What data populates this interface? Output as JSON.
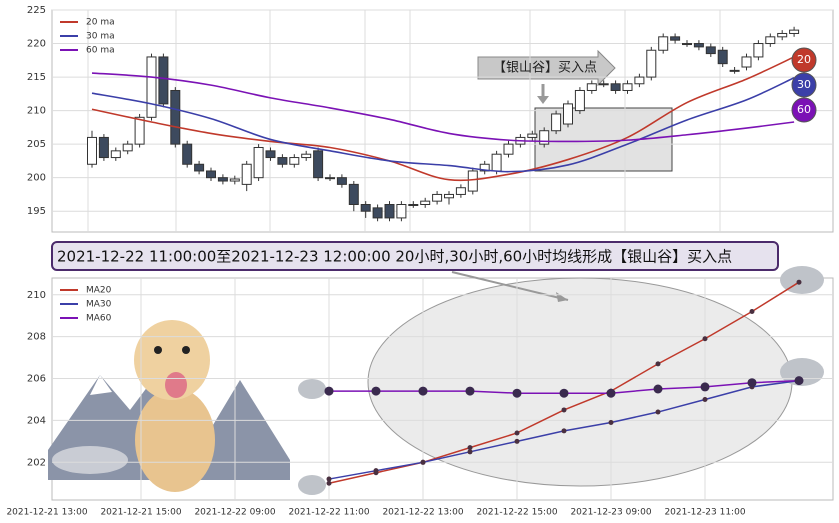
{
  "chart_data": [
    {
      "type": "candlestick",
      "candles": [
        {
          "open": 202,
          "close": 206,
          "high": 207,
          "low": 201.5
        },
        {
          "open": 206,
          "close": 203,
          "high": 206.5,
          "low": 202.5
        },
        {
          "open": 203,
          "close": 204,
          "high": 204.5,
          "low": 202.5
        },
        {
          "open": 204,
          "close": 205,
          "high": 205.5,
          "low": 203.5
        },
        {
          "open": 205,
          "close": 209,
          "high": 209.5,
          "low": 204.5
        },
        {
          "open": 209,
          "close": 218,
          "high": 218.5,
          "low": 208.5
        },
        {
          "open": 218,
          "close": 211,
          "high": 218.5,
          "low": 210.5
        },
        {
          "open": 213,
          "close": 205,
          "high": 213.5,
          "low": 204.5
        },
        {
          "open": 205,
          "close": 202,
          "high": 205.5,
          "low": 201.5
        },
        {
          "open": 202,
          "close": 201,
          "high": 202.5,
          "low": 200.5
        },
        {
          "open": 201,
          "close": 200,
          "high": 201.5,
          "low": 199.5
        },
        {
          "open": 200,
          "close": 199.5,
          "high": 200.5,
          "low": 199
        },
        {
          "open": 199.5,
          "close": 199.8,
          "high": 200.3,
          "low": 199
        },
        {
          "open": 199,
          "close": 202,
          "high": 202.5,
          "low": 198
        },
        {
          "open": 200,
          "close": 204.5,
          "high": 205,
          "low": 199.5
        },
        {
          "open": 204,
          "close": 203,
          "high": 204.5,
          "low": 202.5
        },
        {
          "open": 203,
          "close": 202,
          "high": 203.5,
          "low": 201.5
        },
        {
          "open": 202,
          "close": 203,
          "high": 203.5,
          "low": 201.5
        },
        {
          "open": 203,
          "close": 203.5,
          "high": 204,
          "low": 202.5
        },
        {
          "open": 204,
          "close": 200,
          "high": 204.5,
          "low": 199.5
        },
        {
          "open": 200,
          "close": 200,
          "high": 200.5,
          "low": 199.5
        },
        {
          "open": 200,
          "close": 199,
          "high": 200.5,
          "low": 198.5
        },
        {
          "open": 199,
          "close": 196,
          "high": 199.5,
          "low": 195
        },
        {
          "open": 196,
          "close": 195,
          "high": 196.5,
          "low": 194
        },
        {
          "open": 195.5,
          "close": 194,
          "high": 196,
          "low": 193.5
        },
        {
          "open": 196,
          "close": 194,
          "high": 196.5,
          "low": 193.5
        },
        {
          "open": 194,
          "close": 196,
          "high": 196.5,
          "low": 193.5
        },
        {
          "open": 196,
          "close": 196,
          "high": 196.5,
          "low": 195.5
        },
        {
          "open": 196,
          "close": 196.5,
          "high": 197,
          "low": 195.5
        },
        {
          "open": 196.5,
          "close": 197.5,
          "high": 198,
          "low": 196
        },
        {
          "open": 197,
          "close": 197.5,
          "high": 198,
          "low": 196
        },
        {
          "open": 197.5,
          "close": 198.5,
          "high": 199,
          "low": 197
        },
        {
          "open": 198,
          "close": 201,
          "high": 201.5,
          "low": 197.5
        },
        {
          "open": 201,
          "close": 202,
          "high": 202.5,
          "low": 200.5
        },
        {
          "open": 201,
          "close": 203.5,
          "high": 204,
          "low": 200.5
        },
        {
          "open": 203.5,
          "close": 205,
          "high": 205.5,
          "low": 203
        },
        {
          "open": 205,
          "close": 206,
          "high": 206.5,
          "low": 204.5
        },
        {
          "open": 206,
          "close": 206.5,
          "high": 207,
          "low": 205.5
        },
        {
          "open": 205,
          "close": 207,
          "high": 207.5,
          "low": 204.5
        },
        {
          "open": 207,
          "close": 209.5,
          "high": 210,
          "low": 206.5
        },
        {
          "open": 208,
          "close": 211,
          "high": 211.5,
          "low": 207.5
        },
        {
          "open": 210,
          "close": 213,
          "high": 213.5,
          "low": 209.5
        },
        {
          "open": 213,
          "close": 214,
          "high": 214.5,
          "low": 212.5
        },
        {
          "open": 214,
          "close": 214,
          "high": 214.5,
          "low": 213.5
        },
        {
          "open": 214,
          "close": 213,
          "high": 214.5,
          "low": 212.5
        },
        {
          "open": 213,
          "close": 214,
          "high": 214.5,
          "low": 212.5
        },
        {
          "open": 214,
          "close": 215,
          "high": 215.5,
          "low": 213.5
        },
        {
          "open": 215,
          "close": 219,
          "high": 219.5,
          "low": 214.5
        },
        {
          "open": 219,
          "close": 221,
          "high": 221.5,
          "low": 218.5
        },
        {
          "open": 221,
          "close": 220.5,
          "high": 221.5,
          "low": 220
        },
        {
          "open": 220,
          "close": 220,
          "high": 220.5,
          "low": 219.5
        },
        {
          "open": 220,
          "close": 219.5,
          "high": 220.5,
          "low": 219
        },
        {
          "open": 219.5,
          "close": 218.5,
          "high": 220,
          "low": 218
        },
        {
          "open": 219,
          "close": 217,
          "high": 219.5,
          "low": 216.5
        },
        {
          "open": 216,
          "close": 216,
          "high": 216.5,
          "low": 215.5
        },
        {
          "open": 216.5,
          "close": 218,
          "high": 218.5,
          "low": 216
        },
        {
          "open": 218,
          "close": 220,
          "high": 220.5,
          "low": 217.5
        },
        {
          "open": 220,
          "close": 221,
          "high": 221.5,
          "low": 219.5
        },
        {
          "open": 221,
          "close": 221.5,
          "high": 222,
          "low": 220.5
        },
        {
          "open": 221.5,
          "close": 222,
          "high": 222.5,
          "low": 221
        }
      ],
      "series": [
        {
          "name": "20 ma",
          "color": "#c0392b",
          "x": [
            0,
            5,
            10,
            15,
            20,
            25,
            30,
            35,
            40,
            45,
            50,
            55,
            59
          ],
          "values": [
            210.2,
            208.3,
            206.6,
            205.4,
            204.5,
            202.5,
            199.7,
            200.5,
            202.7,
            206.0,
            211.2,
            214.7,
            218.0
          ]
        },
        {
          "name": "30 ma",
          "color": "#3b3fa8",
          "x": [
            0,
            5,
            10,
            15,
            20,
            25,
            30,
            35,
            40,
            45,
            50,
            55,
            59
          ],
          "values": [
            212.6,
            211.0,
            208.8,
            205.7,
            204.0,
            202.5,
            201.8,
            200.9,
            201.9,
            205.0,
            208.6,
            211.6,
            214.9
          ]
        },
        {
          "name": "60 ma",
          "color": "#7b12b5",
          "x": [
            0,
            5,
            10,
            15,
            20,
            25,
            30,
            35,
            40,
            45,
            50,
            55,
            59
          ],
          "values": [
            215.6,
            215.0,
            213.8,
            211.9,
            210.4,
            208.7,
            206.6,
            205.6,
            205.4,
            205.6,
            206.4,
            207.4,
            208.3
          ]
        }
      ],
      "end_labels": [
        20,
        30,
        60
      ],
      "annotation": "【银山谷】买入点",
      "ylim": [
        191.9,
        225
      ],
      "yticks": [
        195,
        200,
        205,
        210,
        215,
        220,
        225
      ],
      "grid": true,
      "legend": "upper left"
    },
    {
      "type": "line",
      "title": "2021-12-22 11:00:00至2021-12-23 12:00:00 20小时,30小时,60小时均线形成【银山谷】买入点",
      "categories": [
        "2021-12-21 13:00",
        null,
        "2021-12-21 15:00",
        null,
        "2021-12-22 09:00",
        null,
        "2021-12-22 11:00",
        null,
        "2021-12-22 13:00",
        null,
        "2021-12-22 15:00",
        null,
        "2021-12-23 09:00",
        null,
        "2021-12-23 11:00",
        null,
        null
      ],
      "series": [
        {
          "name": "MA20",
          "color": "#c0392b",
          "values": [
            null,
            null,
            null,
            null,
            null,
            null,
            201.0,
            201.5,
            202.0,
            202.7,
            203.4,
            204.5,
            205.4,
            206.7,
            207.9,
            209.2,
            210.6
          ]
        },
        {
          "name": "MA30",
          "color": "#3b3fa8",
          "values": [
            null,
            null,
            null,
            null,
            null,
            null,
            201.2,
            201.6,
            202.0,
            202.5,
            203.0,
            203.5,
            203.9,
            204.4,
            205.0,
            205.6,
            205.9
          ]
        },
        {
          "name": "MA60",
          "color": "#7b12b5",
          "values": [
            null,
            null,
            null,
            null,
            null,
            null,
            205.4,
            205.4,
            205.4,
            205.4,
            205.3,
            205.3,
            205.3,
            205.5,
            205.6,
            205.8,
            205.9
          ]
        }
      ],
      "ylim": [
        200.2,
        210.8
      ],
      "yticks": [
        202,
        204,
        206,
        208,
        210
      ],
      "grid": true,
      "legend": "upper left"
    }
  ]
}
